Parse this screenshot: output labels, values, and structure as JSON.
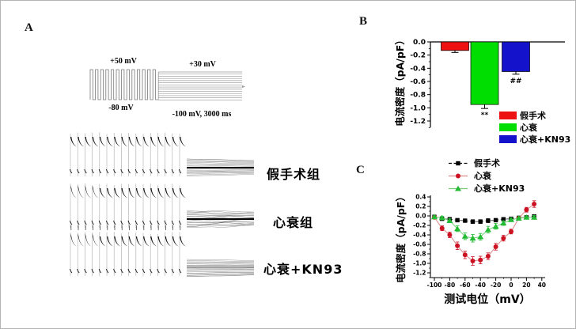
{
  "figure": {
    "panel_a_letter": "A",
    "panel_b_letter": "B",
    "panel_c_letter": "C"
  },
  "panel_a": {
    "protocol": {
      "train_top_label": "+50 mV",
      "train_bottom_label": "-80 mV",
      "step_top_label": "+30 mV",
      "step_bottom_label": "-100 mV, 3000 ms",
      "n_pulses": 13,
      "n_steps": 14
    },
    "traces": [
      {
        "label": "假手术组"
      },
      {
        "label": "心衰组"
      },
      {
        "label": "心衰+KN93"
      }
    ]
  },
  "chart_data": [
    {
      "id": "chart-b",
      "type": "bar",
      "categories": [
        "假手术",
        "心衰",
        "心衰+KN93"
      ],
      "values": [
        -0.13,
        -0.95,
        -0.45
      ],
      "errors": [
        0.03,
        0.06,
        0.04
      ],
      "bar_colors": [
        "#ee1111",
        "#00dd00",
        "#1512cc"
      ],
      "annotations": [
        "",
        "**",
        "##"
      ],
      "ylabel": "电流密度（pA/pF）",
      "ylim": [
        -1.3,
        0.0
      ],
      "yticks": [
        0.0,
        -0.2,
        -0.4,
        -0.6,
        -0.8,
        -1.0,
        -1.2
      ],
      "legend_position": "lower-right"
    },
    {
      "id": "chart-c",
      "type": "line",
      "x": [
        -100,
        -90,
        -80,
        -70,
        -60,
        -50,
        -40,
        -30,
        -20,
        -10,
        0,
        10,
        20,
        30
      ],
      "series": [
        {
          "name": "假手术",
          "marker": "square",
          "color": "#000000",
          "line_color": "#555555",
          "line_style": "dashed",
          "values": [
            -0.02,
            -0.06,
            -0.07,
            -0.09,
            -0.1,
            -0.12,
            -0.12,
            -0.1,
            -0.09,
            -0.07,
            -0.06,
            -0.04,
            -0.03,
            -0.01
          ],
          "errors": [
            0.02,
            0.02,
            0.02,
            0.03,
            0.03,
            0.04,
            0.04,
            0.04,
            0.03,
            0.03,
            0.02,
            0.02,
            0.02,
            0.02
          ]
        },
        {
          "name": "心衰",
          "marker": "circle",
          "color": "#cc1122",
          "line_color": "#dd8a8a",
          "line_style": "solid",
          "values": [
            -0.03,
            -0.26,
            -0.4,
            -0.63,
            -0.82,
            -0.95,
            -0.93,
            -0.85,
            -0.65,
            -0.47,
            -0.33,
            -0.05,
            0.13,
            0.25
          ],
          "errors": [
            0.03,
            0.05,
            0.06,
            0.08,
            0.08,
            0.09,
            0.08,
            0.07,
            0.07,
            0.06,
            0.05,
            0.04,
            0.05,
            0.07
          ]
        },
        {
          "name": "心衰+KN93",
          "marker": "triangle",
          "color": "#22bb33",
          "line_color": "#77cc77",
          "line_style": "solid",
          "values": [
            -0.02,
            -0.04,
            -0.1,
            -0.27,
            -0.43,
            -0.47,
            -0.44,
            -0.29,
            -0.22,
            -0.15,
            -0.08,
            -0.05,
            -0.03,
            -0.03
          ],
          "errors": [
            0.02,
            0.03,
            0.04,
            0.06,
            0.07,
            0.08,
            0.07,
            0.07,
            0.06,
            0.05,
            0.04,
            0.03,
            0.03,
            0.04
          ]
        }
      ],
      "xlabel": "测试电位（mV）",
      "ylabel": "电流密度（pA/pF）",
      "xlim": [
        -107,
        42
      ],
      "ylim": [
        -1.3,
        0.45
      ],
      "xticks": [
        -100,
        -80,
        -60,
        -40,
        -20,
        0,
        20,
        40
      ],
      "yticks": [
        0.4,
        0.2,
        0.0,
        -0.2,
        -0.4,
        -0.6,
        -0.8,
        -1.0,
        -1.2
      ],
      "legend_position": "top"
    }
  ]
}
